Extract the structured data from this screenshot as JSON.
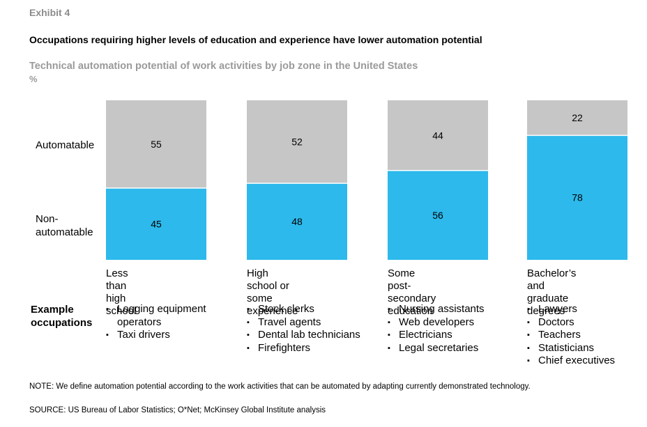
{
  "header": {
    "exhibit": "Exhibit 4",
    "title": "Occupations requiring higher levels of education and experience have lower automation potential",
    "subtitle": "Technical automation potential of work activities by job zone in the United States",
    "unit": "%"
  },
  "row_labels": {
    "automatable": "Automatable",
    "non_automatable": "Non-\nautomatable"
  },
  "colors": {
    "automatable": "#c6c6c6",
    "non_automatable": "#2db9eb"
  },
  "chart_data": {
    "type": "bar",
    "stacked": true,
    "categories": [
      "Less than\nhigh school",
      "High school or\nsome experience",
      "Some post-secondary\neducation",
      "Bachelor’s and\ngraduate degrees"
    ],
    "series": [
      {
        "name": "Non-automatable",
        "values": [
          45,
          48,
          56,
          78
        ]
      },
      {
        "name": "Automatable",
        "values": [
          55,
          52,
          44,
          22
        ]
      }
    ],
    "ylim": [
      0,
      100
    ]
  },
  "examples": {
    "heading": "Example\noccupations",
    "lists": [
      [
        "Logging equipment\noperators",
        "Taxi drivers"
      ],
      [
        "Stock clerks",
        "Travel agents",
        "Dental lab technicians",
        "Firefighters"
      ],
      [
        "Nursing assistants",
        "Web developers",
        "Electricians",
        "Legal secretaries"
      ],
      [
        "Lawyers",
        "Doctors",
        "Teachers",
        "Statisticians",
        "Chief executives"
      ]
    ]
  },
  "footer": {
    "note": "NOTE: We define automation potential according to the work activities that can be automated by adapting currently demonstrated technology.",
    "source": "SOURCE:  US Bureau of Labor Statistics; O*Net; McKinsey Global Institute analysis"
  }
}
